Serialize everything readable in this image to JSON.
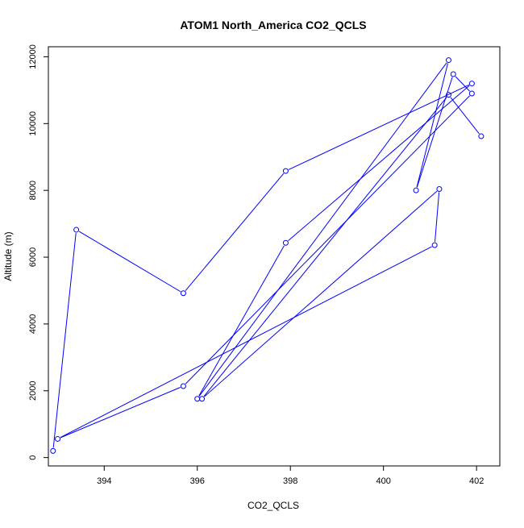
{
  "chart_data": {
    "type": "line",
    "title": "ATOM1 North_America CO2_QCLS",
    "xlabel": "CO2_QCLS",
    "ylabel": "Altitude (m)",
    "xlim": [
      392.8,
      402.5
    ],
    "ylim": [
      -250,
      12300
    ],
    "x_ticks": [
      394,
      396,
      398,
      400,
      402
    ],
    "y_ticks": [
      0,
      2000,
      4000,
      6000,
      8000,
      10000,
      12000
    ],
    "grid": false,
    "legend": "none",
    "colors": {
      "series": "#0000ff",
      "axis": "#000000",
      "background": "#ffffff"
    },
    "series": [
      {
        "marker": "open-circle",
        "points": [
          {
            "x": 392.9,
            "y": 200
          },
          {
            "x": 393.4,
            "y": 6820
          },
          {
            "x": 395.7,
            "y": 4920
          },
          {
            "x": 397.9,
            "y": 8580
          },
          {
            "x": 401.9,
            "y": 11200
          },
          {
            "x": 397.9,
            "y": 6430
          },
          {
            "x": 396.0,
            "y": 1760
          },
          {
            "x": 401.4,
            "y": 11900
          },
          {
            "x": 400.7,
            "y": 8000
          },
          {
            "x": 401.5,
            "y": 11480
          },
          {
            "x": 401.9,
            "y": 10900
          },
          {
            "x": 395.7,
            "y": 2140
          },
          {
            "x": 393.0,
            "y": 560
          },
          {
            "x": 401.1,
            "y": 6360
          },
          {
            "x": 401.2,
            "y": 8040
          },
          {
            "x": 396.1,
            "y": 1760
          },
          {
            "x": 401.4,
            "y": 10860
          },
          {
            "x": 402.1,
            "y": 9620
          }
        ]
      }
    ]
  }
}
